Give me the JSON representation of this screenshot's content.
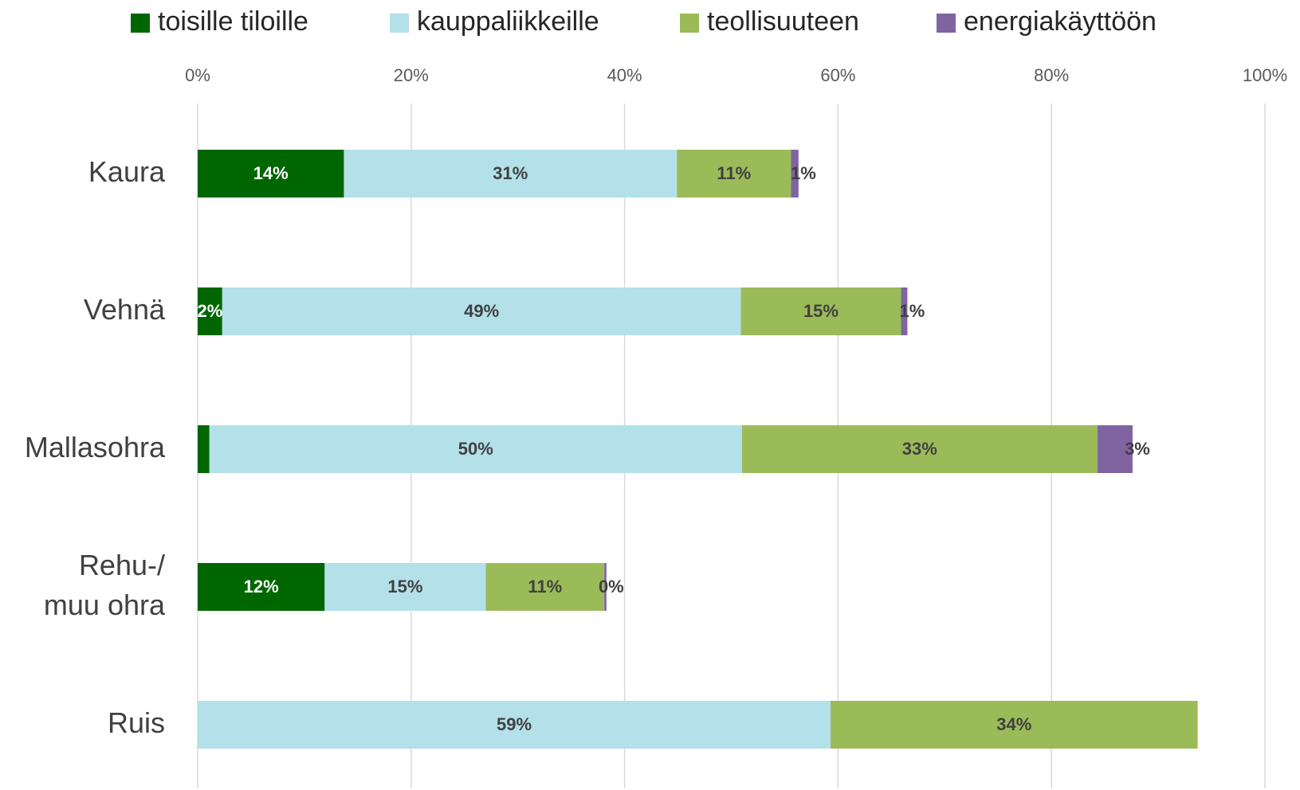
{
  "chart_data": {
    "type": "stacked_barh",
    "categories": [
      "Kaura",
      "Vehnä",
      "Mallasohra",
      "Rehu-/\nmuu ohra",
      "Ruis"
    ],
    "series": [
      {
        "name": "toisille tiloille",
        "color": "#006600",
        "values": [
          13.7,
          2.3,
          1.1,
          11.9,
          0
        ],
        "value_labels": [
          "14%",
          "2%",
          null,
          "12%",
          null
        ]
      },
      {
        "name": "kauppaliikkeille",
        "color": "#b3e0e9",
        "values": [
          31.2,
          48.6,
          49.9,
          15.1,
          59.3
        ],
        "value_labels": [
          "31%",
          "49%",
          "50%",
          "15%",
          "59%"
        ]
      },
      {
        "name": "teollisuuteen",
        "color": "#9bbb59",
        "values": [
          10.7,
          15.0,
          33.3,
          11.1,
          34.4
        ],
        "value_labels": [
          "11%",
          "15%",
          "33%",
          "11%",
          "34%"
        ]
      },
      {
        "name": "energiakäyttöön",
        "color": "#8064a2",
        "values": [
          0.7,
          0.6,
          3.3,
          0.2,
          0
        ],
        "value_labels": [
          "1%",
          "1%",
          "3%",
          "0%",
          null
        ]
      }
    ],
    "xlim": [
      0,
      100
    ],
    "xticks": [
      {
        "value": 0,
        "label": "0%"
      },
      {
        "value": 20,
        "label": "20%"
      },
      {
        "value": 40,
        "label": "40%"
      },
      {
        "value": 60,
        "label": "60%"
      },
      {
        "value": 80,
        "label": "80%"
      },
      {
        "value": 100,
        "label": "100%"
      }
    ],
    "grid": true,
    "legend": "top"
  }
}
